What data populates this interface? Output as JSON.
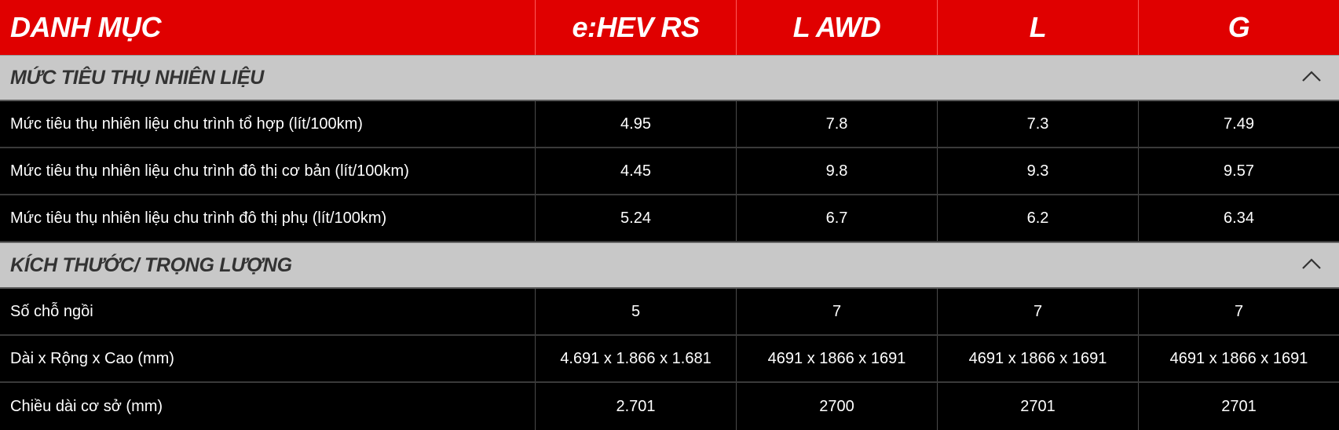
{
  "header": {
    "category": "DANH MỤC",
    "variants": [
      "e:HEV RS",
      "L AWD",
      "L",
      "G"
    ]
  },
  "sections": [
    {
      "title": "MỨC TIÊU THỤ NHIÊN LIỆU",
      "expanded": true,
      "rows": [
        {
          "label": "Mức tiêu thụ nhiên liệu chu trình tổ hợp (lít/100km)",
          "values": [
            "4.95",
            "7.8",
            "7.3",
            "7.49"
          ]
        },
        {
          "label": "Mức tiêu thụ nhiên liệu chu trình đô thị cơ bản (lít/100km)",
          "values": [
            "4.45",
            "9.8",
            "9.3",
            "9.57"
          ]
        },
        {
          "label": "Mức tiêu thụ nhiên liệu chu trình đô thị phụ (lít/100km)",
          "values": [
            "5.24",
            "6.7",
            "6.2",
            "6.34"
          ]
        }
      ]
    },
    {
      "title": "KÍCH THƯỚC/ TRỌNG LƯỢNG",
      "expanded": true,
      "rows": [
        {
          "label": "Số chỗ ngồi",
          "values": [
            "5",
            "7",
            "7",
            "7"
          ]
        },
        {
          "label": "Dài x Rộng x Cao (mm)",
          "values": [
            "4.691 x 1.866 x 1.681",
            "4691 x 1866 x 1691",
            "4691 x 1866 x 1691",
            "4691 x 1866 x 1691"
          ]
        },
        {
          "label": "Chiều dài cơ sở (mm)",
          "values": [
            "2.701",
            "2700",
            "2701",
            "2701"
          ]
        }
      ]
    }
  ],
  "icons": {
    "section_toggle": "chevron-up-icon"
  },
  "colors": {
    "header_bg": "#e00000",
    "section_bg": "#c8c8c8",
    "row_bg": "#000000"
  }
}
